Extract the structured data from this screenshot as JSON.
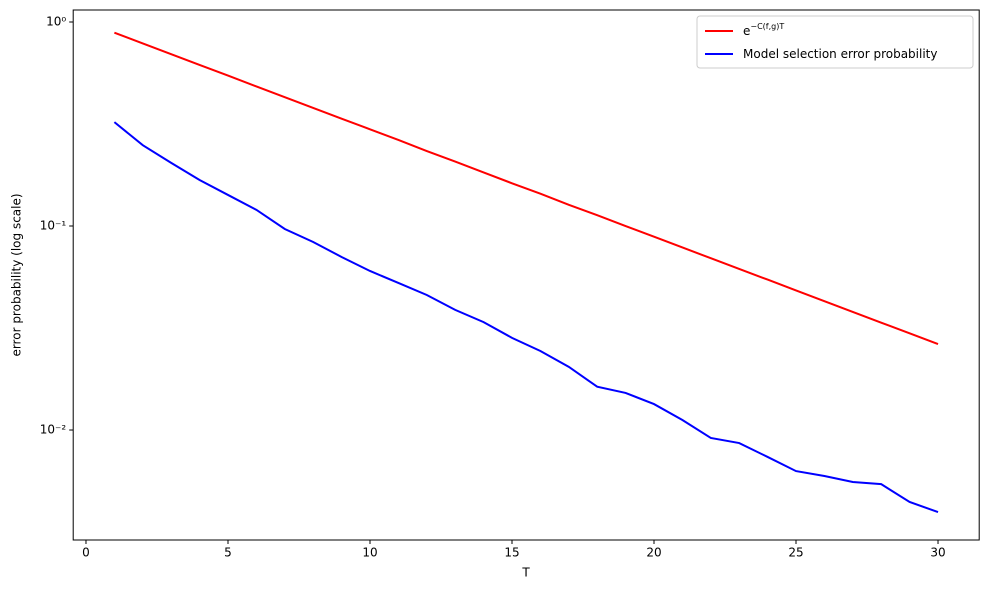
{
  "chart_data": {
    "type": "line",
    "xlabel": "T",
    "ylabel": "error probability (log scale)",
    "x": [
      1,
      2,
      3,
      4,
      5,
      6,
      7,
      8,
      9,
      10,
      11,
      12,
      13,
      14,
      15,
      16,
      17,
      18,
      19,
      20,
      21,
      22,
      23,
      24,
      25,
      26,
      27,
      28,
      29,
      30
    ],
    "series": [
      {
        "name": "e^−C(f,g)T",
        "color": "#ff0000",
        "values": [
          0.886,
          0.785,
          0.695,
          0.616,
          0.546,
          0.483,
          0.428,
          0.379,
          0.336,
          0.298,
          0.264,
          0.233,
          0.207,
          0.183,
          0.162,
          0.144,
          0.127,
          0.113,
          0.1,
          0.0886,
          0.0785,
          0.0695,
          0.0616,
          0.0546,
          0.0483,
          0.0428,
          0.0379,
          0.0336,
          0.0298,
          0.0264
        ]
      },
      {
        "name": "Model selection error probability",
        "color": "#0000ff",
        "values": [
          0.323,
          0.249,
          0.204,
          0.168,
          0.142,
          0.12,
          0.0967,
          0.0835,
          0.0705,
          0.0602,
          0.0526,
          0.0459,
          0.0388,
          0.0338,
          0.0283,
          0.0244,
          0.0204,
          0.0163,
          0.0152,
          0.0134,
          0.0112,
          0.00914,
          0.00863,
          0.00738,
          0.00629,
          0.00595,
          0.00556,
          0.00543,
          0.00444,
          0.00396
        ]
      }
    ],
    "xlim": [
      -0.45,
      31.45
    ],
    "xticks": [
      0,
      5,
      10,
      15,
      20,
      25,
      30
    ],
    "ylim": [
      0.00289,
      1.145
    ],
    "ylog": true,
    "yticks": [
      {
        "value": 1,
        "label": "10⁰"
      },
      {
        "value": 0.1,
        "label": "10⁻¹"
      },
      {
        "value": 0.01,
        "label": "10⁻²"
      }
    ],
    "legend": "upper right"
  }
}
